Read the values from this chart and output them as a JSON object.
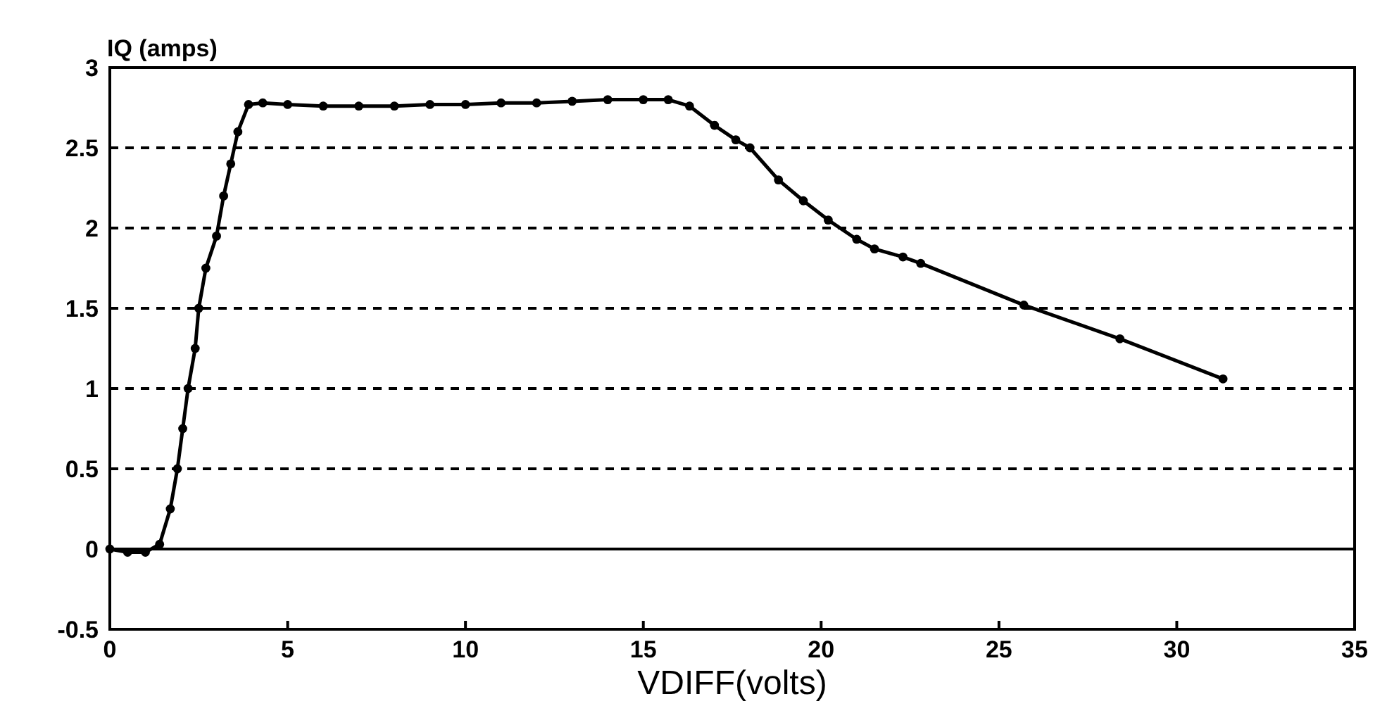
{
  "chart_data": {
    "type": "line",
    "xlabel": "VDIFF(volts)",
    "ylabel": "IQ (amps)",
    "xlim": [
      0,
      35
    ],
    "xticks": [
      0,
      5,
      10,
      15,
      20,
      25,
      30,
      35
    ],
    "ylim": [
      -0.5,
      3
    ],
    "yticks": [
      -0.5,
      0,
      0.5,
      1,
      1.5,
      2,
      2.5,
      3
    ],
    "grid": "y",
    "marker": "circle",
    "line_style": "solid",
    "ref_lines": [
      {
        "axis": "y",
        "value": 0
      }
    ],
    "series": [
      {
        "color": "#000000",
        "x": [
          0,
          0.5,
          1,
          1.4,
          1.7,
          1.9,
          2.05,
          2.2,
          2.4,
          2.5,
          2.7,
          3.0,
          3.2,
          3.4,
          3.6,
          3.9,
          4.3,
          5,
          6,
          7,
          8,
          9,
          10,
          11,
          12,
          13,
          14,
          15,
          15.7,
          16.3,
          17,
          17.6,
          18,
          18.8,
          19.5,
          20.2,
          21,
          21.5,
          22.3,
          22.8,
          25.7,
          28.4,
          31.3
        ],
        "values": [
          0,
          -0.02,
          -0.02,
          0.03,
          0.25,
          0.5,
          0.75,
          1.0,
          1.25,
          1.5,
          1.75,
          1.95,
          2.2,
          2.4,
          2.6,
          2.77,
          2.78,
          2.77,
          2.76,
          2.76,
          2.76,
          2.77,
          2.77,
          2.78,
          2.78,
          2.79,
          2.8,
          2.8,
          2.8,
          2.76,
          2.64,
          2.55,
          2.5,
          2.3,
          2.17,
          2.05,
          1.93,
          1.87,
          1.82,
          1.78,
          1.52,
          1.31,
          1.06
        ]
      }
    ]
  }
}
